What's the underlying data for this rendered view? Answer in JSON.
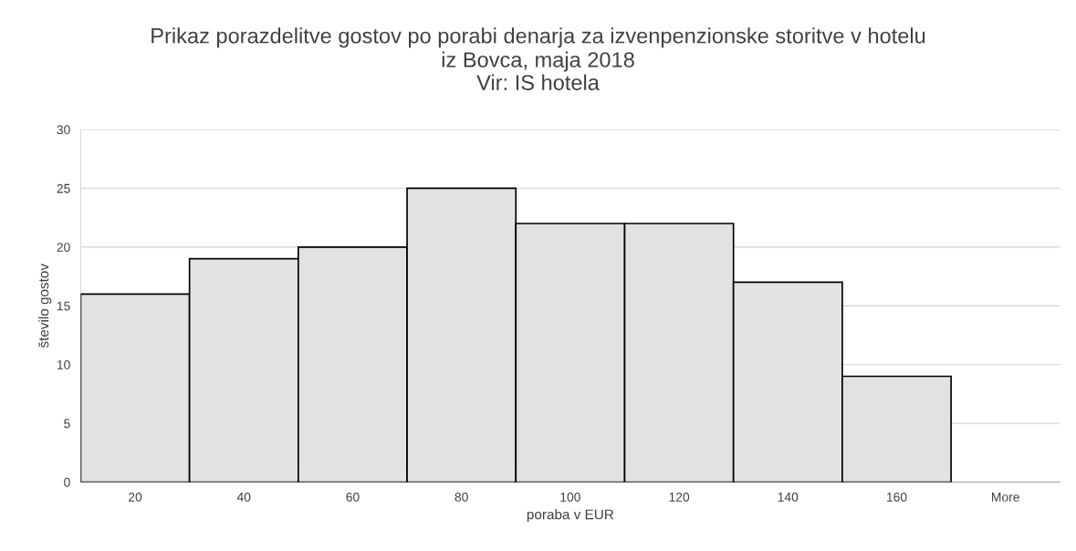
{
  "chart_data": {
    "type": "bar",
    "title": "Prikaz porazdelitve gostov po porabi denarja za izvenpenzionske storitve v hotelu\niz Bovca, maja 2018",
    "subtitle": "Vir: IS hotela",
    "xlabel": "poraba v EUR",
    "ylabel": "število gostov",
    "categories": [
      "20",
      "40",
      "60",
      "80",
      "100",
      "120",
      "140",
      "160",
      "More"
    ],
    "values": [
      16,
      19,
      20,
      25,
      22,
      22,
      17,
      9,
      0
    ],
    "color": "#e2e2e2",
    "ylim": [
      0,
      30
    ],
    "yticks": [
      0,
      5,
      10,
      15,
      20,
      25,
      30
    ],
    "grid": "y"
  }
}
